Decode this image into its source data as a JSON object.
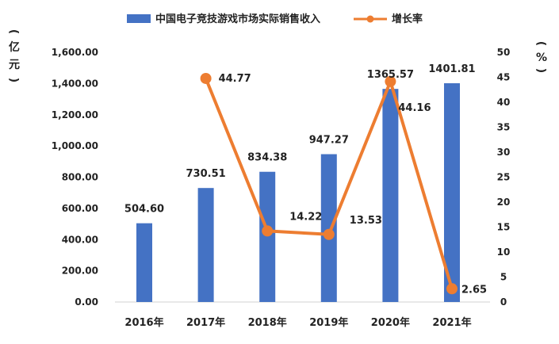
{
  "chart_data": {
    "type": "bar",
    "categories": [
      "2016年",
      "2017年",
      "2018年",
      "2019年",
      "2020年",
      "2021年"
    ],
    "series": [
      {
        "name": "中国电子竞技游戏市场实际销售收入",
        "type": "bar",
        "axis": "left",
        "color": "#4472C4",
        "values": [
          504.6,
          730.51,
          834.38,
          947.27,
          1365.57,
          1401.81
        ],
        "labels": [
          "504.60",
          "730.51",
          "834.38",
          "947.27",
          "1365.57",
          "1401.81"
        ]
      },
      {
        "name": "增长率",
        "type": "line",
        "axis": "right",
        "color": "#ED7D31",
        "values": [
          null,
          44.77,
          14.22,
          13.53,
          44.16,
          2.65
        ],
        "labels": [
          "",
          "44.77",
          "14.22",
          "13.53",
          "44.16",
          "2.65"
        ]
      }
    ],
    "y_left": {
      "label_chars": [
        "(",
        "亿",
        "元",
        ")"
      ],
      "ylim": [
        0,
        1600
      ],
      "ticks": [
        "0.00",
        "200.00",
        "400.00",
        "600.00",
        "800.00",
        "1,000.00",
        "1,200.00",
        "1,400.00",
        "1,600.00"
      ]
    },
    "y_right": {
      "label_chars": [
        "(",
        "%",
        ")"
      ],
      "ylim": [
        0,
        50
      ],
      "ticks": [
        "0",
        "5",
        "10",
        "15",
        "20",
        "25",
        "30",
        "35",
        "40",
        "45",
        "50"
      ]
    },
    "legend_position": "top",
    "grid": false
  }
}
